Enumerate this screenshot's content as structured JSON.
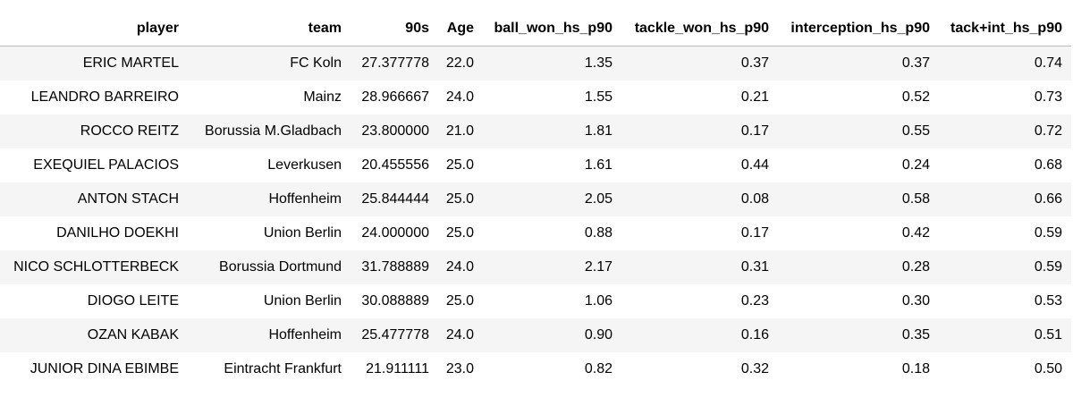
{
  "table": {
    "columns": [
      "player",
      "team",
      "90s",
      "Age",
      "ball_won_hs_p90",
      "tackle_won_hs_p90",
      "interception_hs_p90",
      "tack+int_hs_p90"
    ],
    "rows": [
      [
        "ERIC MARTEL",
        "FC Koln",
        "27.377778",
        "22.0",
        "1.35",
        "0.37",
        "0.37",
        "0.74"
      ],
      [
        "LEANDRO BARREIRO",
        "Mainz",
        "28.966667",
        "24.0",
        "1.55",
        "0.21",
        "0.52",
        "0.73"
      ],
      [
        "ROCCO REITZ",
        "Borussia M.Gladbach",
        "23.800000",
        "21.0",
        "1.81",
        "0.17",
        "0.55",
        "0.72"
      ],
      [
        "EXEQUIEL PALACIOS",
        "Leverkusen",
        "20.455556",
        "25.0",
        "1.61",
        "0.44",
        "0.24",
        "0.68"
      ],
      [
        "ANTON STACH",
        "Hoffenheim",
        "25.844444",
        "25.0",
        "2.05",
        "0.08",
        "0.58",
        "0.66"
      ],
      [
        "DANILHO DOEKHI",
        "Union Berlin",
        "24.000000",
        "25.0",
        "0.88",
        "0.17",
        "0.42",
        "0.59"
      ],
      [
        "NICO SCHLOTTERBECK",
        "Borussia Dortmund",
        "31.788889",
        "24.0",
        "2.17",
        "0.31",
        "0.28",
        "0.59"
      ],
      [
        "DIOGO LEITE",
        "Union Berlin",
        "30.088889",
        "25.0",
        "1.06",
        "0.23",
        "0.30",
        "0.53"
      ],
      [
        "OZAN KABAK",
        "Hoffenheim",
        "25.477778",
        "24.0",
        "0.90",
        "0.16",
        "0.35",
        "0.51"
      ],
      [
        "JUNIOR DINA EBIMBE",
        "Eintracht Frankfurt",
        "21.911111",
        "23.0",
        "0.82",
        "0.32",
        "0.18",
        "0.50"
      ]
    ]
  }
}
